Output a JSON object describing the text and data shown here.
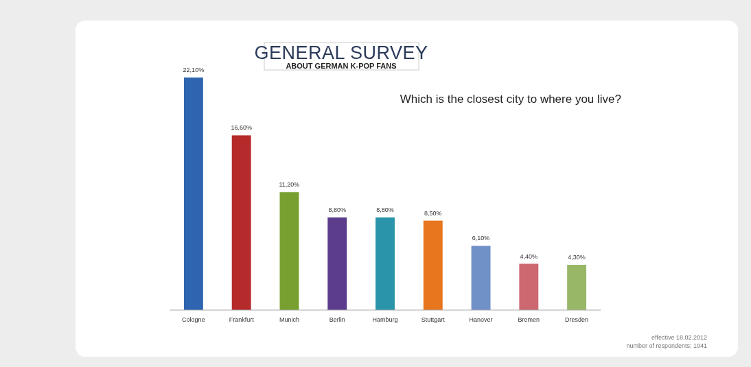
{
  "chart_data": {
    "type": "bar",
    "title": "GENERAL SURVEY",
    "subtitle": "ABOUT GERMAN K-POP FANS",
    "annotations": [
      "Which is the closest city to where you live?",
      "effective 18.02.2012",
      "number of respondents: 1041"
    ],
    "categories": [
      "Cologne",
      "Frankfurt",
      "Munich",
      "Berlin",
      "Hamburg",
      "Stuttgart",
      "Hanover",
      "Bremen",
      "Dresden"
    ],
    "values": [
      22.1,
      16.6,
      11.2,
      8.8,
      8.8,
      8.5,
      6.1,
      4.4,
      4.3
    ],
    "colors": [
      "#2e64b0",
      "#b52a2a",
      "#78a030",
      "#5c3c8c",
      "#2a94aa",
      "#e8761e",
      "#7090c8",
      "#cc6870",
      "#98b868"
    ],
    "value_labels": [
      "22,10%",
      "16,60%",
      "11,20%",
      "8,80%",
      "8,80%",
      "8,50%",
      "6,10%",
      "4,40%",
      "4,30%"
    ]
  }
}
